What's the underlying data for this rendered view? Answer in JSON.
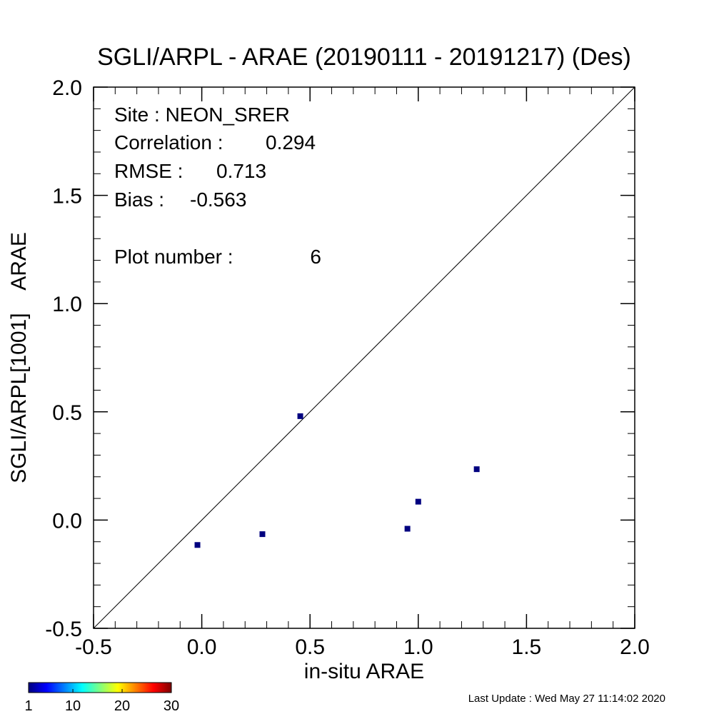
{
  "chart_data": {
    "type": "scatter",
    "title": "SGLI/ARPL - ARAE (20190111 - 20191217) (Des)",
    "xlabel": "in-situ ARAE",
    "ylabel": "SGLI/ARPL[1001]    ARAE",
    "xlim": [
      -0.5,
      2.0
    ],
    "ylim": [
      -0.5,
      2.0
    ],
    "x_tick_labels": [
      "-0.5",
      "0.0",
      "0.5",
      "1.0",
      "1.5",
      "2.0"
    ],
    "y_tick_labels": [
      "-0.5",
      "0.0",
      "0.5",
      "1.0",
      "1.5",
      "2.0"
    ],
    "x_ticks": [
      -0.5,
      0.0,
      0.5,
      1.0,
      1.5,
      2.0
    ],
    "y_ticks": [
      -0.5,
      0.0,
      0.5,
      1.0,
      1.5,
      2.0
    ],
    "minor_step": 0.1,
    "one_to_one_line": true,
    "grid": false,
    "point_color": "#00007f",
    "points": [
      {
        "x": -0.02,
        "y": -0.115
      },
      {
        "x": 0.28,
        "y": -0.065
      },
      {
        "x": 0.455,
        "y": 0.48
      },
      {
        "x": 0.95,
        "y": -0.04
      },
      {
        "x": 1.0,
        "y": 0.085
      },
      {
        "x": 1.27,
        "y": 0.235
      }
    ],
    "annotations": {
      "site": "Site : NEON_SRER",
      "correlation_label": "Correlation :",
      "correlation_value": "0.294",
      "rmse_label": "RMSE :",
      "rmse_value": "0.713",
      "bias_label": "Bias :",
      "bias_value": "-0.563",
      "plot_number_label": "Plot number :",
      "plot_number_value": "6"
    },
    "colorbar": {
      "tick_labels": [
        "1",
        "10",
        "20",
        "30"
      ],
      "ticks": [
        1,
        10,
        20,
        30
      ],
      "range": [
        1,
        30
      ],
      "colormap": "jet"
    },
    "last_update": "Last Update : Wed May 27 11:14:02 2020"
  }
}
